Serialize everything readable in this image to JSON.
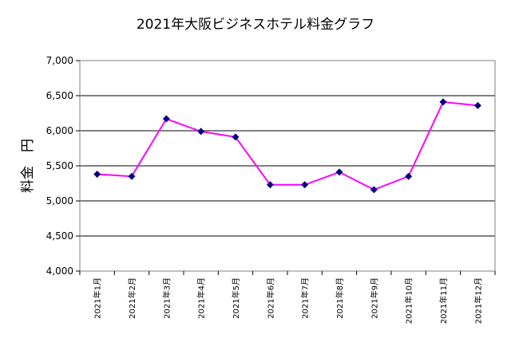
{
  "chart_data": {
    "type": "line",
    "title": "2021年大阪ビジネスホテル料金グラフ",
    "ylabel": "料金　円",
    "xlabel": "",
    "categories": [
      "2021年1月",
      "2021年2月",
      "2021年3月",
      "2021年4月",
      "2021年5月",
      "2021年6月",
      "2021年7月",
      "2021年8月",
      "2021年9月",
      "2021年10月",
      "2021年11月",
      "2021年12月"
    ],
    "series": [
      {
        "values": [
          5380,
          5350,
          6170,
          5990,
          5910,
          5230,
          5230,
          5410,
          5160,
          5350,
          6410,
          6360
        ],
        "line_color": "#ff00ff",
        "marker_color": "#000080"
      }
    ],
    "ylim": [
      4000,
      7000
    ],
    "yticks": [
      4000,
      4500,
      5000,
      5500,
      6000,
      6500,
      7000
    ],
    "ytick_labels": [
      "4,000",
      "4,500",
      "5,000",
      "5,500",
      "6,000",
      "6,500",
      "7,000"
    ],
    "grid": true,
    "legend": "none"
  }
}
